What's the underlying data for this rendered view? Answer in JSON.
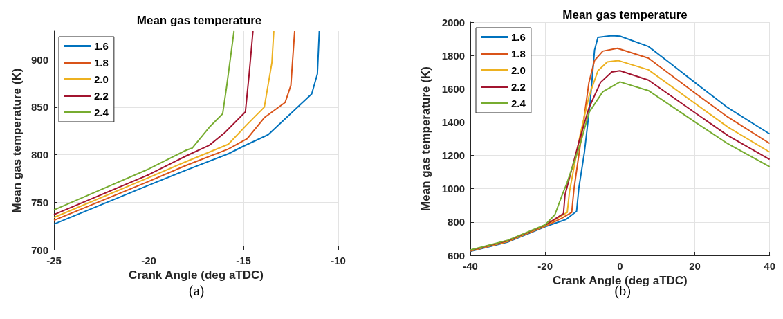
{
  "chart_data": [
    {
      "type": "line",
      "title": "Mean gas temperature",
      "xlabel": "Crank Angle (deg aTDC)",
      "ylabel": "Mean gas temperature (K)",
      "xlim": [
        -25,
        -10
      ],
      "xticks": [
        -25,
        -20,
        -15,
        -10
      ],
      "ylim": [
        700,
        930
      ],
      "yticks": [
        700,
        750,
        800,
        850,
        900
      ],
      "grid": true,
      "legend": "top left",
      "marker": "none",
      "line_style": "solid",
      "annotations": [
        "(a)"
      ],
      "series": [
        {
          "name": "1.6",
          "color": "#0072bd",
          "x": [
            -25,
            -20,
            -18,
            -15.8,
            -15,
            -13.7,
            -11.4,
            -11.1,
            -11.0
          ],
          "values": [
            727,
            768,
            784,
            801,
            809,
            821,
            864,
            885,
            930
          ]
        },
        {
          "name": "1.8",
          "color": "#d95319",
          "x": [
            -25,
            -20,
            -18,
            -15.8,
            -14.8,
            -13.9,
            -12.8,
            -12.5,
            -12.3
          ],
          "values": [
            731,
            772,
            789,
            806,
            817,
            839,
            855,
            873,
            930
          ]
        },
        {
          "name": "2.0",
          "color": "#edb120",
          "x": [
            -25,
            -20,
            -18,
            -15.8,
            -14.8,
            -13.9,
            -13.5,
            -13.4
          ],
          "values": [
            734,
            776,
            793,
            811,
            832,
            850,
            897,
            930
          ]
        },
        {
          "name": "2.2",
          "color": "#a2142f",
          "x": [
            -25,
            -20,
            -18,
            -16.8,
            -16.0,
            -14.9,
            -14.7,
            -14.5
          ],
          "values": [
            737,
            779,
            799,
            810,
            823,
            845,
            885,
            930
          ]
        },
        {
          "name": "2.4",
          "color": "#77ac30",
          "x": [
            -25,
            -20,
            -18,
            -17.7,
            -16.8,
            -16.1,
            -15.9,
            -15.5
          ],
          "values": [
            742,
            785,
            805,
            807,
            829,
            843,
            870,
            930
          ]
        }
      ]
    },
    {
      "type": "line",
      "title": "Mean gas temperature",
      "xlabel": "Crank Angle (deg aTDC)",
      "ylabel": "Mean gas temperature (K)",
      "xlim": [
        -40,
        40
      ],
      "xticks": [
        -40,
        -20,
        0,
        20,
        40
      ],
      "ylim": [
        600,
        2000
      ],
      "yticks": [
        600,
        800,
        1000,
        1200,
        1400,
        1600,
        1800,
        2000
      ],
      "grid": true,
      "legend": "top left",
      "marker": "none",
      "line_style": "solid",
      "annotations": [
        "(b)"
      ],
      "series": [
        {
          "name": "1.6",
          "color": "#0072bd",
          "x": [
            -40,
            -30,
            -20,
            -14.4,
            -11.6,
            -11.0,
            -9.5,
            -8.0,
            -6.8,
            -5.9,
            -2.2,
            0,
            7.6,
            13.7,
            20,
            28.9,
            40
          ],
          "values": [
            624,
            680,
            772,
            816,
            865,
            1004,
            1220,
            1513,
            1833,
            1909,
            1919,
            1916,
            1854,
            1749,
            1638,
            1485,
            1329
          ]
        },
        {
          "name": "1.8",
          "color": "#d95319",
          "x": [
            -40,
            -30,
            -20,
            -15.6,
            -12.9,
            -12.3,
            -10.1,
            -8.3,
            -6.8,
            -4.6,
            -0.7,
            7.6,
            20,
            28.9,
            40
          ],
          "values": [
            626,
            683,
            775,
            823,
            858,
            997,
            1345,
            1638,
            1770,
            1826,
            1843,
            1784,
            1575,
            1429,
            1272
          ]
        },
        {
          "name": "2.0",
          "color": "#edb120",
          "x": [
            -40,
            -30,
            -20,
            -16.2,
            -14.1,
            -13.5,
            -10.7,
            -8.3,
            -5.9,
            -3.4,
            -0.4,
            7.6,
            20,
            28.9,
            40
          ],
          "values": [
            628,
            685,
            778,
            830,
            858,
            983,
            1318,
            1554,
            1708,
            1761,
            1769,
            1714,
            1513,
            1369,
            1220
          ]
        },
        {
          "name": "2.2",
          "color": "#a2142f",
          "x": [
            -40,
            -30,
            -20,
            -15.1,
            -14.7,
            -10.7,
            -8.3,
            -5.2,
            -2.2,
            0,
            7.6,
            20,
            28.9,
            40
          ],
          "values": [
            630,
            688,
            781,
            851,
            963,
            1304,
            1485,
            1638,
            1701,
            1708,
            1652,
            1457,
            1318,
            1176
          ]
        },
        {
          "name": "2.4",
          "color": "#77ac30",
          "x": [
            -40,
            -30,
            -20,
            -17.4,
            -15.7,
            -14.1,
            -10.7,
            -8.3,
            -4.6,
            0,
            7.6,
            20,
            28.9,
            40
          ],
          "values": [
            632,
            691,
            784,
            844,
            948,
            1039,
            1262,
            1457,
            1582,
            1641,
            1589,
            1401,
            1269,
            1132
          ]
        }
      ]
    }
  ]
}
